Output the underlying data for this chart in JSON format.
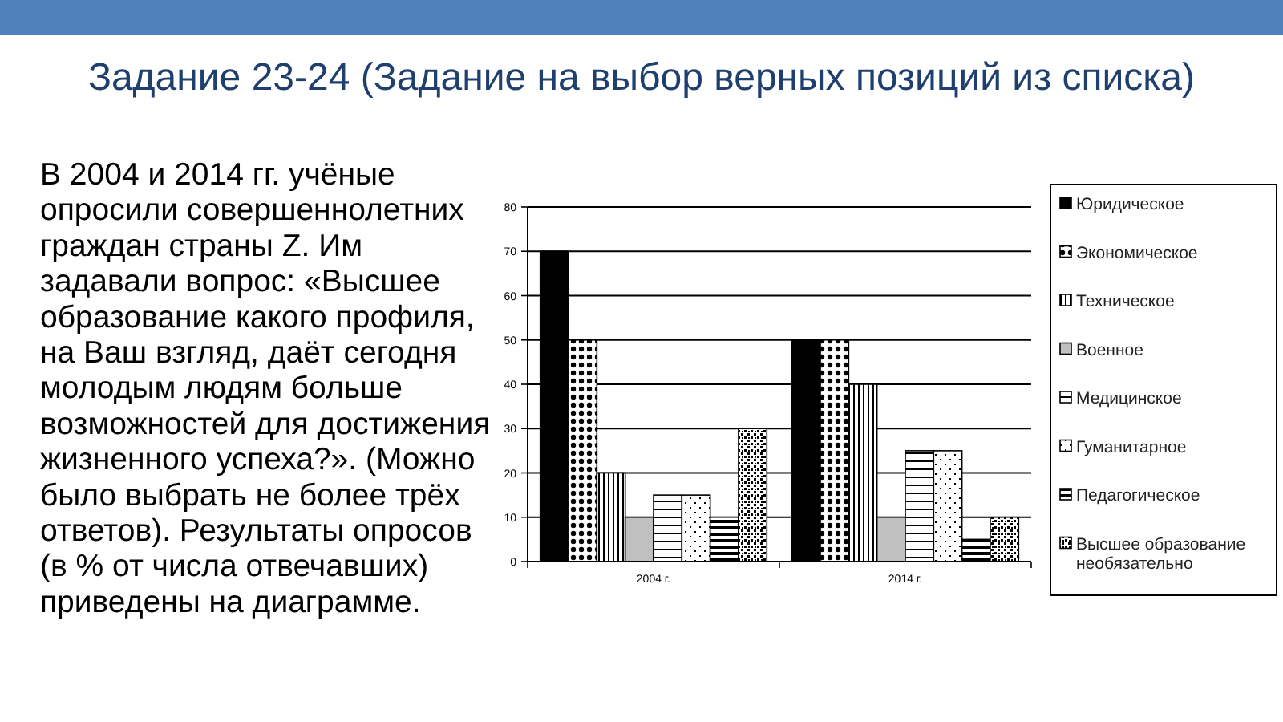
{
  "chart_data": {
    "type": "bar",
    "title": "Задание 23-24 (Задание на выбор верных позиций из списка)",
    "subtitle": "В 2004 и 2014 гг. учёные опросили совершеннолетних граждан страны Z. Им задавали вопрос: «Высшее образование какого профиля, на Ваш взгляд, даёт сегодня молодым людям больше возможностей для достижения жизненного успеха?». (Можно было выбрать не более трёх ответов). Результаты опросов (в % от числа отвечавших) приведены на диаграмме.",
    "categories": [
      "2004 г.",
      "2014 г."
    ],
    "series": [
      {
        "name": "Юридическое",
        "color": "#000000",
        "values": [
          70,
          50
        ]
      },
      {
        "name": "Экономическое",
        "color": "#000000",
        "values": [
          50,
          50
        ]
      },
      {
        "name": "Техническое",
        "color": "#000000",
        "values": [
          20,
          40
        ]
      },
      {
        "name": "Военное",
        "color": "#c0c0c0",
        "values": [
          10,
          10
        ]
      },
      {
        "name": "Медицинское",
        "color": "#000000",
        "values": [
          15,
          25
        ]
      },
      {
        "name": "Гуманитарное",
        "color": "#000000",
        "values": [
          15,
          25
        ]
      },
      {
        "name": "Педагогическое",
        "color": "#000000",
        "values": [
          10,
          5
        ]
      },
      {
        "name": "Высшее образование необязательно",
        "color": "#000000",
        "values": [
          30,
          10
        ]
      }
    ],
    "ylim": [
      0,
      80
    ],
    "yticks": [
      0,
      10,
      20,
      30,
      40,
      50,
      60,
      70,
      80
    ],
    "grid": "y",
    "legend": "right"
  }
}
